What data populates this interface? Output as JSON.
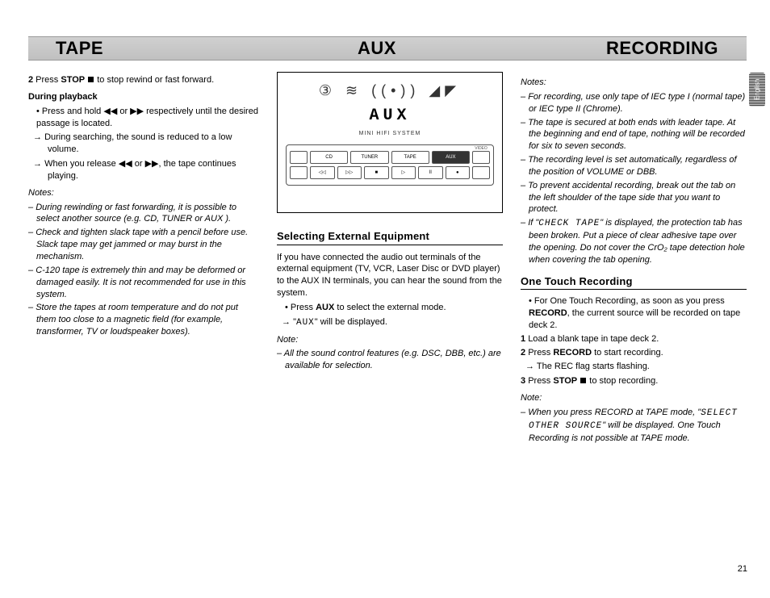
{
  "header": {
    "tape": "TAPE",
    "aux": "AUX",
    "recording": "RECORDING"
  },
  "sideTab": "English",
  "pageNumber": "21",
  "tape": {
    "step2_pre": "2",
    "step2_a": " Press ",
    "step2_stop": "STOP",
    "step2_b": " ",
    "step2_c": " to stop rewind or fast forward.",
    "during_heading": "During playback",
    "bullet1": "Press and hold ◀◀ or ▶▶ respectively until the desired passage is located.",
    "arrow1": "During searching, the sound is reduced to a low volume.",
    "arrow2": "When you release ◀◀ or ▶▶, the tape continues playing.",
    "notes_label": "Notes:",
    "note1": "During rewinding or fast forwarding, it is possible to select another source (e.g. CD, TUNER or AUX ).",
    "note2": "Check and tighten slack tape with a pencil before use. Slack tape may get jammed or may burst in the mechanism.",
    "note3": "C-120 tape is extremely thin and may be deformed or damaged easily. It is not recommended for use in this system.",
    "note4": "Store the tapes at room temperature and do not put them too close to a magnetic field (for example, transformer, TV or loudspeaker boxes)."
  },
  "diagram": {
    "icons": "③ ≋ ((•)) ◢◤",
    "display": "AUX",
    "mini_label": "MINI HIFI SYSTEM",
    "top_buttons": [
      {
        "label": "CD",
        "hl": false
      },
      {
        "label": "TUNER",
        "hl": false
      },
      {
        "label": "TAPE",
        "hl": false
      },
      {
        "label": "AUX",
        "hl": true
      }
    ],
    "vid_label": "VIDEO",
    "bot_buttons": [
      "◁◁",
      "▷▷",
      "■",
      "▷",
      "II",
      "●"
    ]
  },
  "aux": {
    "heading": "Selecting External Equipment",
    "p1": "If you have connected the audio out terminals of the external equipment (TV, VCR, Laser Disc or DVD player) to the AUX IN terminals, you can hear the sound from the system.",
    "bullet_a": "Press ",
    "bullet_bold": "AUX",
    "bullet_b": " to select the external mode.",
    "arrow_a": "\"",
    "arrow_mono": "AUX",
    "arrow_b": "\" will be displayed.",
    "note_label": "Note:",
    "note1": "All the sound control features (e.g. DSC, DBB, etc.) are available for selection."
  },
  "rec": {
    "notes_label": "Notes:",
    "n1": "For recording, use only tape of IEC type I (normal tape) or IEC type II (Chrome).",
    "n2": "The tape is secured at both ends with leader tape.  At the beginning and end of tape, nothing will be recorded for six to seven seconds.",
    "n3": "The recording level is set automatically, regardless of the position of VOLUME or DBB.",
    "n4": "To prevent accidental recording, break out the tab on the left shoulder of the tape side that you want to protect.",
    "n5_a": "If \"",
    "n5_mono": "CHECK  TAPE",
    "n5_b": "\" is displayed, the protection tab has been broken.  Put a piece of clear adhesive tape over the opening.  Do not cover the CrO₂ tape detection hole when covering the tab opening.",
    "heading": "One Touch Recording",
    "b1_a": "For One Touch Recording, as soon as you press ",
    "b1_bold": "RECORD",
    "b1_b": ", the current source will be recorded on tape deck 2.",
    "s1": "Load a blank tape in tape deck 2.",
    "s2_a": "Press ",
    "s2_bold": "RECORD",
    "s2_b": " to start recording.",
    "s2_arrow": "The REC flag starts flashing.",
    "s3_a": "Press ",
    "s3_bold": "STOP",
    "s3_b": " to stop recording.",
    "note_label": "Note:",
    "note_a": "When you press RECORD at TAPE mode, \"",
    "note_mono": "SELECT OTHER SOURCE",
    "note_b": "\" will be displayed.  One Touch Recording is not possible at TAPE mode."
  }
}
